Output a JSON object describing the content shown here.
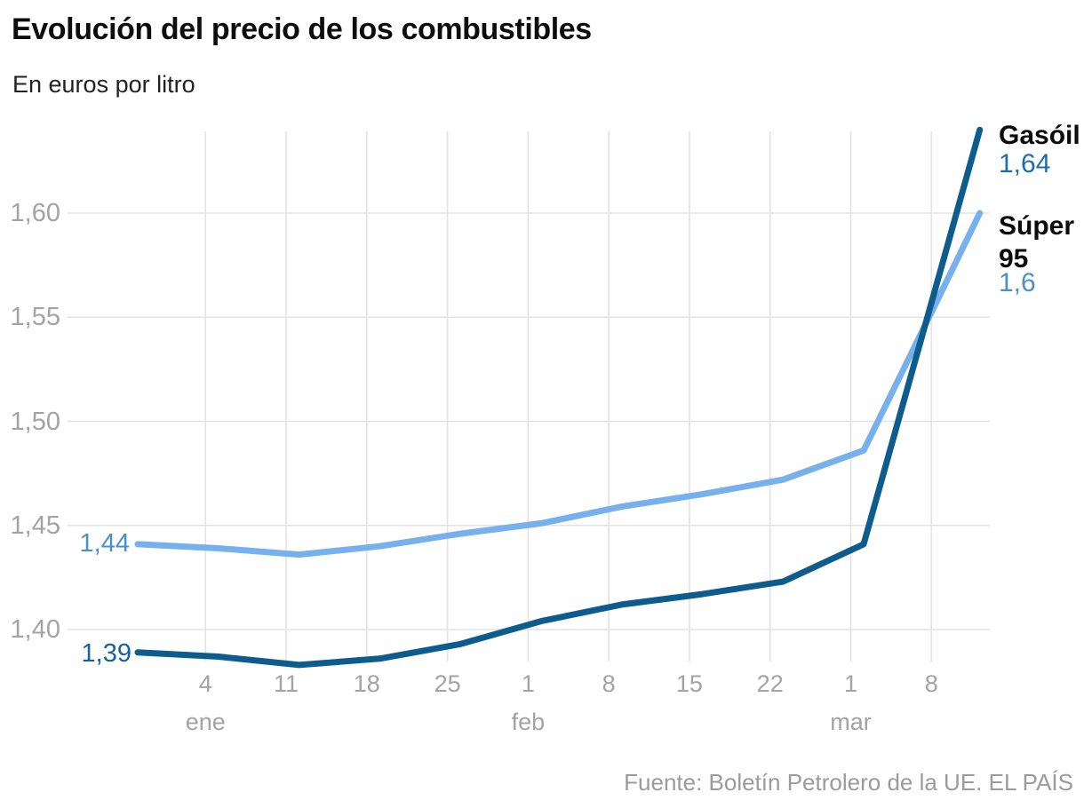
{
  "header": {
    "title": "Evolución del precio de los combustibles",
    "subtitle": "En euros por litro"
  },
  "chart_data": {
    "type": "line",
    "title": "Evolución del precio de los combustibles",
    "subtitle": "En euros por litro",
    "unit": "euros por litro",
    "grid": true,
    "legend_position": "right of line ends",
    "x": {
      "ticks": [
        {
          "day": "4",
          "month": "ene",
          "t": 0.84
        },
        {
          "day": "11",
          "t": 1.84
        },
        {
          "day": "18",
          "t": 2.84
        },
        {
          "day": "25",
          "t": 3.84
        },
        {
          "day": "1",
          "month": "feb",
          "t": 4.84
        },
        {
          "day": "8",
          "t": 5.84
        },
        {
          "day": "15",
          "t": 6.84
        },
        {
          "day": "22",
          "t": 7.84
        },
        {
          "day": "1",
          "month": "mar",
          "t": 8.84
        },
        {
          "day": "8",
          "t": 9.84
        }
      ]
    },
    "y": {
      "ticks": [
        {
          "label": "1,40",
          "value": 1.4
        },
        {
          "label": "1,45",
          "value": 1.45
        },
        {
          "label": "1,50",
          "value": 1.5
        },
        {
          "label": "1,55",
          "value": 1.55
        },
        {
          "label": "1,60",
          "value": 1.6
        }
      ],
      "range": [
        1.38,
        1.645
      ]
    },
    "t_values": [
      0,
      1,
      2,
      3,
      4,
      5,
      6,
      7,
      8,
      9,
      10,
      10.44
    ],
    "series": [
      {
        "name": "Gasóil",
        "color": "#0e5c8e",
        "values": [
          1.389,
          1.387,
          1.383,
          1.386,
          1.393,
          1.404,
          1.412,
          1.417,
          1.423,
          1.441,
          1.579,
          1.64
        ],
        "start_label": "1,39",
        "start_label_color": "#14639e",
        "end_label": "1,64",
        "end_label_color": "#1b6fa8"
      },
      {
        "name": "Súper 95",
        "color": "#76b1ee",
        "values": [
          1.441,
          1.439,
          1.436,
          1.44,
          1.446,
          1.451,
          1.459,
          1.465,
          1.472,
          1.486,
          1.565,
          1.6
        ],
        "start_label": "1,44",
        "start_label_color": "#4a8fc6",
        "end_label": "1,6",
        "end_label_color": "#4a8fc6"
      }
    ],
    "gridline_color": "#e3e3e3"
  },
  "footer": {
    "source": "Fuente: Boletín Petrolero de la UE. EL PAÍS"
  }
}
